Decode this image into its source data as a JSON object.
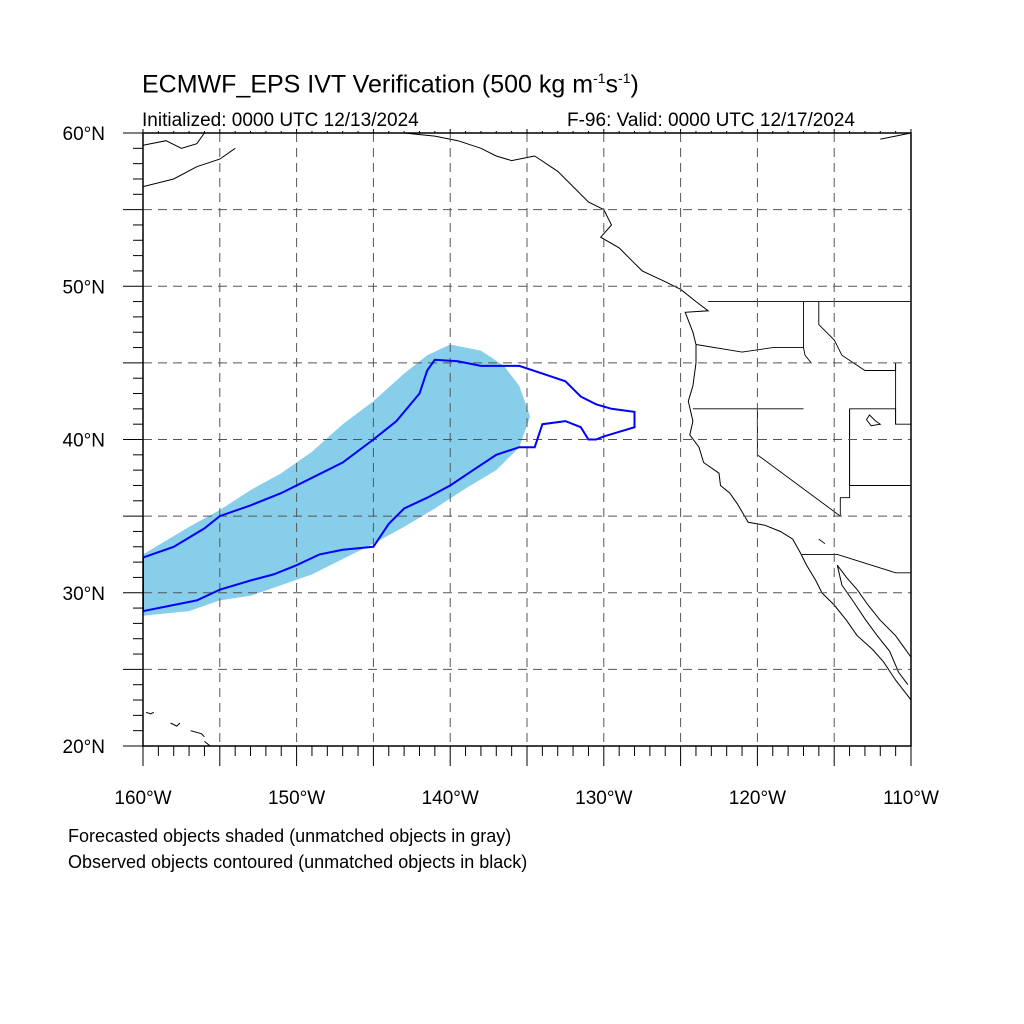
{
  "title": {
    "main": "ECMWF_EPS IVT Verification (500 kg m",
    "sup1": "-1",
    "mid": "s",
    "sup2": "-1",
    "end": ")"
  },
  "init_time": "Initialized: 0000 UTC 12/13/2024",
  "valid_time": "F-96: Valid: 0000 UTC 12/17/2024",
  "lat_labels": [
    {
      "value": 60,
      "text": "60°N"
    },
    {
      "value": 50,
      "text": "50°N"
    },
    {
      "value": 40,
      "text": "40°N"
    },
    {
      "value": 30,
      "text": "30°N"
    },
    {
      "value": 20,
      "text": "20°N"
    }
  ],
  "lon_labels": [
    {
      "value": -160,
      "text": "160°W"
    },
    {
      "value": -150,
      "text": "150°W"
    },
    {
      "value": -140,
      "text": "140°W"
    },
    {
      "value": -130,
      "text": "130°W"
    },
    {
      "value": -120,
      "text": "120°W"
    },
    {
      "value": -110,
      "text": "110°W"
    }
  ],
  "map_extent": {
    "lon": [
      -160,
      -110
    ],
    "lat": [
      20,
      60
    ]
  },
  "colors": {
    "forecast_fill": "#87ceeb",
    "observed_contour": "#0000ff",
    "grid": "#555555",
    "coast": "#000000"
  },
  "legend": {
    "line1": "Forecasted objects shaded (unmatched objects in gray)",
    "line2": "Observed objects contoured (unmatched objects in black)"
  },
  "forecast_object": {
    "polygon": [
      [
        -160,
        28.5
      ],
      [
        -157,
        28.8
      ],
      [
        -155,
        29.5
      ],
      [
        -153,
        29.8
      ],
      [
        -151,
        30.5
      ],
      [
        -149,
        31.2
      ],
      [
        -147,
        32.2
      ],
      [
        -145,
        33.2
      ],
      [
        -143,
        34.3
      ],
      [
        -141,
        35.5
      ],
      [
        -139,
        36.8
      ],
      [
        -137,
        38
      ],
      [
        -135.5,
        39.5
      ],
      [
        -134.8,
        41.5
      ],
      [
        -135.5,
        43.5
      ],
      [
        -136.5,
        44.8
      ],
      [
        -138,
        45.8
      ],
      [
        -140,
        46.2
      ],
      [
        -141.5,
        45.5
      ],
      [
        -143,
        44.3
      ],
      [
        -145,
        42.5
      ],
      [
        -147,
        41
      ],
      [
        -149,
        39.2
      ],
      [
        -151,
        37.8
      ],
      [
        -153,
        36.7
      ],
      [
        -155,
        35.4
      ],
      [
        -157,
        34.3
      ],
      [
        -160,
        32.5
      ]
    ]
  },
  "observed_object": {
    "polygon": [
      [
        -160,
        32.3
      ],
      [
        -158,
        33
      ],
      [
        -156,
        34.2
      ],
      [
        -155,
        35
      ],
      [
        -153,
        35.7
      ],
      [
        -151,
        36.5
      ],
      [
        -149,
        37.5
      ],
      [
        -147,
        38.5
      ],
      [
        -145,
        40
      ],
      [
        -143.5,
        41.2
      ],
      [
        -142,
        43
      ],
      [
        -141.5,
        44.5
      ],
      [
        -141,
        45.2
      ],
      [
        -139.5,
        45.1
      ],
      [
        -138,
        44.8
      ],
      [
        -135.5,
        44.8
      ],
      [
        -134,
        44.3
      ],
      [
        -132.5,
        43.8
      ],
      [
        -131.5,
        42.8
      ],
      [
        -130.5,
        42.3
      ],
      [
        -129.5,
        42
      ],
      [
        -128,
        41.8
      ],
      [
        -128,
        40.8
      ],
      [
        -129,
        40.5
      ],
      [
        -130,
        40.2
      ],
      [
        -130.5,
        40
      ],
      [
        -131,
        40
      ],
      [
        -131.5,
        40.8
      ],
      [
        -132.5,
        41.2
      ],
      [
        -134,
        41
      ],
      [
        -134.5,
        39.5
      ],
      [
        -135.5,
        39.5
      ],
      [
        -137,
        39
      ],
      [
        -138.5,
        38
      ],
      [
        -140,
        37
      ],
      [
        -141.5,
        36.2
      ],
      [
        -143,
        35.5
      ],
      [
        -144,
        34.5
      ],
      [
        -145,
        33
      ],
      [
        -147,
        32.8
      ],
      [
        -148.5,
        32.5
      ],
      [
        -150,
        31.8
      ],
      [
        -151.5,
        31.2
      ],
      [
        -153,
        30.8
      ],
      [
        -155,
        30.2
      ],
      [
        -156.5,
        29.5
      ],
      [
        -158,
        29.2
      ],
      [
        -160,
        28.8
      ]
    ]
  },
  "coastline": {
    "west_coast": [
      [
        -134.5,
        58.5
      ],
      [
        -133,
        57.5
      ],
      [
        -132,
        56.5
      ],
      [
        -131,
        55.5
      ],
      [
        -130,
        55
      ],
      [
        -129.5,
        54
      ],
      [
        -130.2,
        53.2
      ],
      [
        -129,
        52.5
      ],
      [
        -128,
        51.5
      ],
      [
        -127.5,
        51
      ],
      [
        -126,
        50.3
      ],
      [
        -125,
        49.8
      ],
      [
        -124,
        49
      ],
      [
        -123.2,
        48.4
      ],
      [
        -124.7,
        48.3
      ],
      [
        -124.2,
        47
      ],
      [
        -124,
        46.2
      ],
      [
        -124,
        45
      ],
      [
        -124.2,
        43.5
      ],
      [
        -124.5,
        42.5
      ],
      [
        -124.2,
        41.2
      ],
      [
        -124.4,
        40.3
      ],
      [
        -123.8,
        39.5
      ],
      [
        -123.5,
        38.5
      ],
      [
        -122.5,
        37.8
      ],
      [
        -122.4,
        37
      ],
      [
        -121.8,
        36.5
      ],
      [
        -121.3,
        35.8
      ],
      [
        -120.6,
        34.6
      ],
      [
        -119.5,
        34.4
      ],
      [
        -118.5,
        34
      ],
      [
        -117.7,
        33.5
      ],
      [
        -117.2,
        32.6
      ],
      [
        -116.8,
        31.8
      ],
      [
        -116.2,
        30.8
      ],
      [
        -115.8,
        30
      ],
      [
        -115,
        29.2
      ],
      [
        -114.2,
        28.2
      ],
      [
        -113.5,
        27.2
      ],
      [
        -112.5,
        26.3
      ],
      [
        -111.8,
        25.5
      ],
      [
        -111,
        24.3
      ],
      [
        -110,
        23
      ]
    ],
    "mexico_mainland": [
      [
        -114.8,
        31.8
      ],
      [
        -114.2,
        31
      ],
      [
        -113.5,
        30.2
      ],
      [
        -112.8,
        29.2
      ],
      [
        -112,
        28.2
      ],
      [
        -111,
        27.2
      ],
      [
        -110.5,
        26.5
      ],
      [
        -110,
        25.8
      ]
    ],
    "baja_inner": [
      [
        -114.8,
        31.8
      ],
      [
        -114.5,
        30.5
      ],
      [
        -113.8,
        29.5
      ],
      [
        -113,
        28.3
      ],
      [
        -112.2,
        27.2
      ],
      [
        -111.4,
        26.2
      ],
      [
        -110.8,
        24.8
      ],
      [
        -110.2,
        24
      ]
    ],
    "alaska_west": [
      [
        -160,
        56.5
      ],
      [
        -158,
        57
      ],
      [
        -156.5,
        57.8
      ],
      [
        -155,
        58.3
      ],
      [
        -154,
        59
      ]
    ],
    "alaska_upper": [
      [
        -160,
        59.2
      ],
      [
        -158.5,
        59.5
      ],
      [
        -157.5,
        59
      ],
      [
        -156.5,
        59.3
      ],
      [
        -156,
        60
      ]
    ],
    "gulf_alaska": [
      [
        -145,
        60
      ],
      [
        -143,
        60
      ],
      [
        -141,
        59.8
      ],
      [
        -139.5,
        59.5
      ],
      [
        -138,
        59
      ],
      [
        -137,
        58.5
      ],
      [
        -136,
        58.2
      ],
      [
        -134.5,
        58.5
      ]
    ],
    "alaska_far_east": [
      [
        -110,
        60
      ],
      [
        -111,
        59.8
      ],
      [
        -112,
        59.6
      ]
    ],
    "hawaii_a": [
      [
        -159.8,
        22.2
      ],
      [
        -159.5,
        22.1
      ],
      [
        -159.3,
        22.2
      ]
    ],
    "hawaii_b": [
      [
        -158.2,
        21.5
      ],
      [
        -157.8,
        21.3
      ],
      [
        -157.6,
        21.5
      ]
    ],
    "hawaii_c": [
      [
        -156.9,
        21.0
      ],
      [
        -156.2,
        20.8
      ],
      [
        -156.0,
        20.6
      ]
    ],
    "hawaii_d": [
      [
        -156,
        20.3
      ],
      [
        -155.5,
        19.9
      ],
      [
        -155,
        19.5
      ]
    ]
  },
  "borders": {
    "us_canada": [
      [
        -123.2,
        49
      ],
      [
        -110,
        49
      ]
    ],
    "us_mexico": [
      [
        -117.1,
        32.5
      ],
      [
        -114.8,
        32.5
      ],
      [
        -111,
        31.3
      ],
      [
        -110,
        31.3
      ]
    ],
    "or_ca": [
      [
        -124.2,
        42
      ],
      [
        -117,
        42
      ]
    ],
    "wa_or": [
      [
        -124,
        46.2
      ],
      [
        -121,
        45.7
      ],
      [
        -119,
        46
      ],
      [
        -117,
        46
      ]
    ],
    "ca_nv": [
      [
        -120,
        42
      ],
      [
        -120,
        39
      ],
      [
        -114.6,
        35
      ]
    ],
    "nv_az": [
      [
        -114.6,
        35
      ],
      [
        -114.6,
        36.2
      ],
      [
        -114,
        36.2
      ],
      [
        -114,
        42
      ]
    ],
    "id_wa": [
      [
        -117,
        49
      ],
      [
        -117,
        46
      ],
      [
        -116.9,
        45.5
      ],
      [
        -116.5,
        45
      ]
    ],
    "id_east": [
      [
        -116,
        49
      ],
      [
        -116,
        47.5
      ],
      [
        -115,
        46.5
      ],
      [
        -114.5,
        45.5
      ],
      [
        -113,
        44.5
      ],
      [
        -111,
        44.5
      ]
    ],
    "ut_west": [
      [
        -114,
        42
      ],
      [
        -114,
        37
      ]
    ],
    "ut_north": [
      [
        -114,
        42
      ],
      [
        -111,
        42
      ],
      [
        -111,
        41
      ],
      [
        -110,
        41
      ]
    ],
    "az_ut": [
      [
        -114,
        37
      ],
      [
        -110,
        37
      ]
    ],
    "mt_id": [
      [
        -111,
        45
      ],
      [
        -111,
        44.5
      ]
    ],
    "wy_line": [
      [
        -111,
        45
      ],
      [
        -111,
        41
      ]
    ]
  },
  "lakes": {
    "great_salt_lake": [
      [
        -112.7,
        41.6
      ],
      [
        -112.3,
        41.2
      ],
      [
        -112.0,
        41.0
      ],
      [
        -112.6,
        40.9
      ],
      [
        -112.9,
        41.3
      ]
    ],
    "salton": [
      [
        -116,
        33.5
      ],
      [
        -115.6,
        33.2
      ]
    ]
  }
}
